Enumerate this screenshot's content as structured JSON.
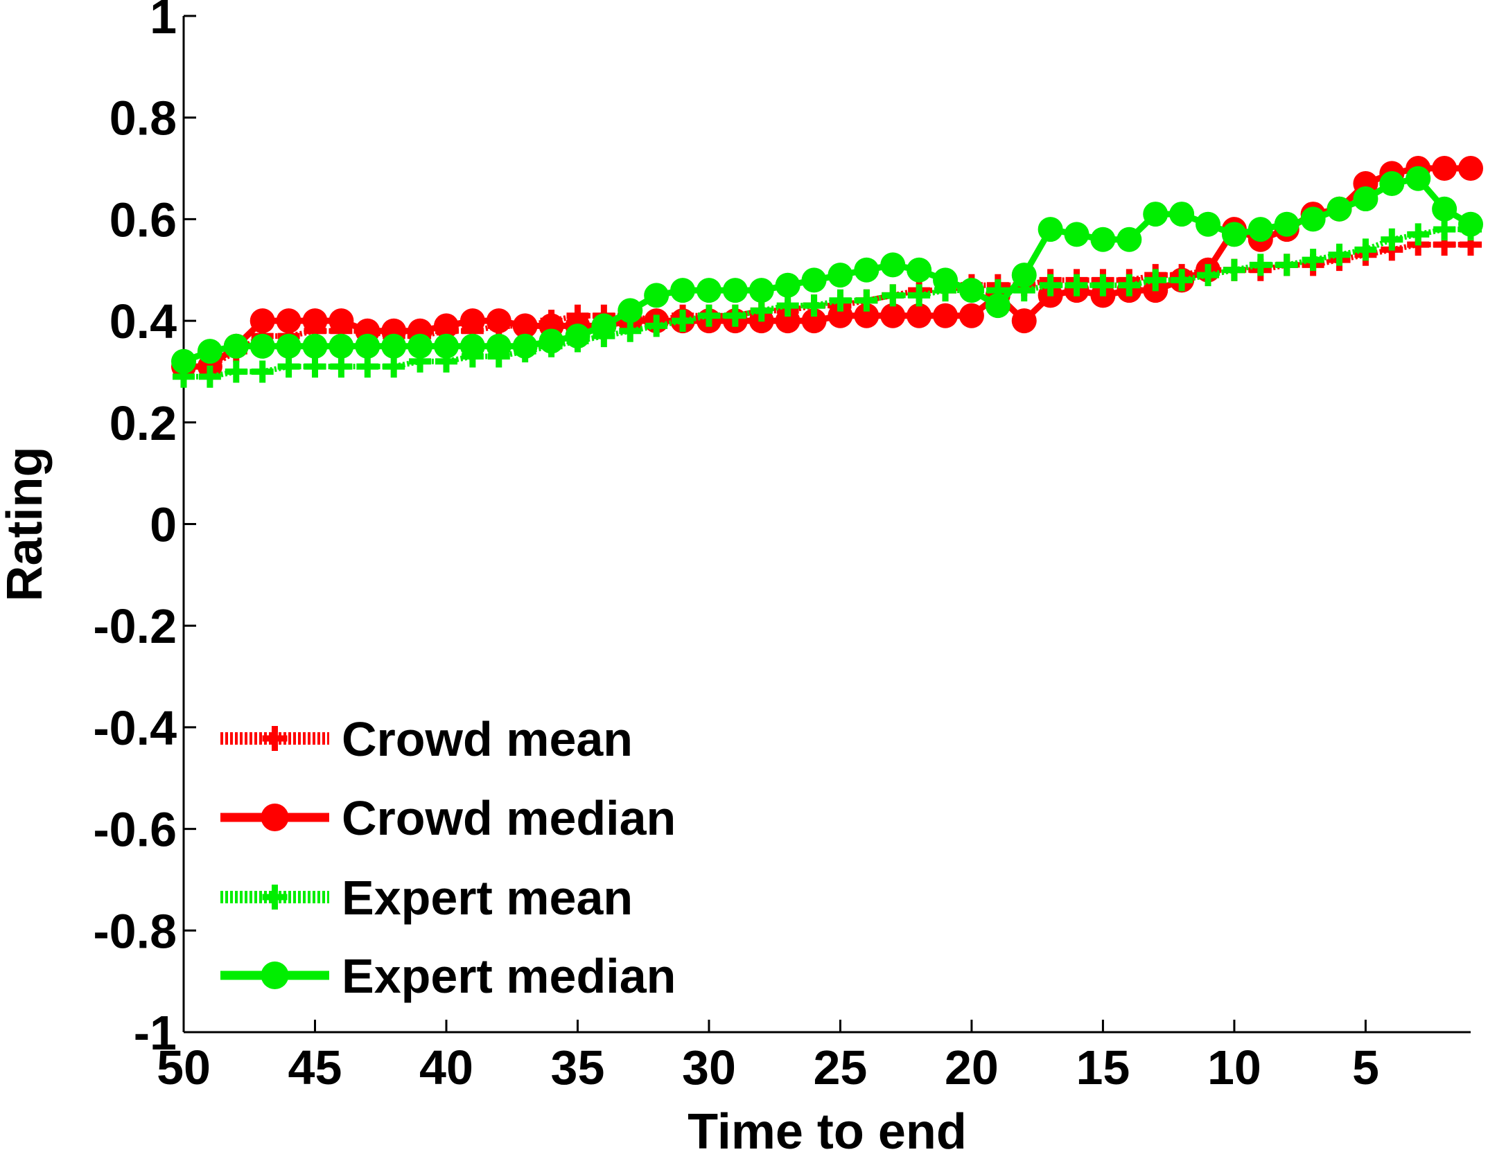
{
  "chart_data": {
    "type": "line",
    "title": "",
    "xlabel": "Time to end",
    "ylabel": "Rating",
    "xlim": [
      50,
      1
    ],
    "ylim": [
      -1,
      1
    ],
    "x_reversed": true,
    "xticks": [
      50,
      45,
      40,
      35,
      30,
      25,
      20,
      15,
      10,
      5
    ],
    "xtick_labels": [
      "50",
      "45",
      "40",
      "35",
      "30",
      "25",
      "20",
      "15",
      "10",
      "5"
    ],
    "yticks": [
      -1,
      -0.8,
      -0.6,
      -0.4,
      -0.2,
      0,
      0.2,
      0.4,
      0.6,
      0.8,
      1
    ],
    "ytick_labels": [
      "-1",
      "-0.8",
      "-0.6",
      "-0.4",
      "-0.2",
      "0",
      "0.2",
      "0.4",
      "0.6",
      "0.8",
      "1"
    ],
    "grid": false,
    "legend_position": "bottom-left",
    "x": [
      50,
      49,
      48,
      47,
      46,
      45,
      44,
      43,
      42,
      41,
      40,
      39,
      38,
      37,
      36,
      35,
      34,
      33,
      32,
      31,
      30,
      29,
      28,
      27,
      26,
      25,
      24,
      23,
      22,
      21,
      20,
      19,
      18,
      17,
      16,
      15,
      14,
      13,
      12,
      11,
      10,
      9,
      8,
      7,
      6,
      5,
      4,
      3,
      2,
      1
    ],
    "series": [
      {
        "name": "Crowd mean",
        "color": "#ff0000",
        "line_style": "dotted",
        "marker": "plus",
        "values": [
          0.31,
          0.31,
          0.34,
          0.37,
          0.37,
          0.38,
          0.38,
          0.38,
          0.37,
          0.37,
          0.38,
          0.38,
          0.39,
          0.39,
          0.4,
          0.41,
          0.41,
          0.41,
          0.4,
          0.41,
          0.41,
          0.41,
          0.42,
          0.42,
          0.43,
          0.43,
          0.44,
          0.45,
          0.46,
          0.46,
          0.47,
          0.47,
          0.47,
          0.48,
          0.48,
          0.48,
          0.48,
          0.49,
          0.49,
          0.5,
          0.5,
          0.5,
          0.51,
          0.51,
          0.52,
          0.53,
          0.54,
          0.55,
          0.55,
          0.55
        ]
      },
      {
        "name": "Crowd median",
        "color": "#ff0000",
        "line_style": "solid",
        "marker": "circle",
        "values": [
          0.31,
          0.31,
          0.35,
          0.4,
          0.4,
          0.4,
          0.4,
          0.38,
          0.38,
          0.38,
          0.39,
          0.4,
          0.4,
          0.39,
          0.39,
          0.39,
          0.39,
          0.4,
          0.4,
          0.4,
          0.4,
          0.4,
          0.4,
          0.4,
          0.4,
          0.41,
          0.41,
          0.41,
          0.41,
          0.41,
          0.41,
          0.45,
          0.4,
          0.45,
          0.46,
          0.45,
          0.46,
          0.46,
          0.48,
          0.5,
          0.58,
          0.56,
          0.58,
          0.61,
          0.62,
          0.67,
          0.69,
          0.7,
          0.7,
          0.7
        ]
      },
      {
        "name": "Expert mean",
        "color": "#00ee00",
        "line_style": "dotted",
        "marker": "plus",
        "values": [
          0.29,
          0.29,
          0.3,
          0.3,
          0.31,
          0.31,
          0.31,
          0.31,
          0.31,
          0.32,
          0.32,
          0.33,
          0.33,
          0.34,
          0.35,
          0.36,
          0.37,
          0.38,
          0.39,
          0.4,
          0.41,
          0.41,
          0.42,
          0.43,
          0.43,
          0.44,
          0.44,
          0.45,
          0.45,
          0.46,
          0.46,
          0.46,
          0.46,
          0.47,
          0.47,
          0.47,
          0.47,
          0.48,
          0.48,
          0.49,
          0.5,
          0.51,
          0.51,
          0.52,
          0.53,
          0.54,
          0.56,
          0.57,
          0.58,
          0.58
        ]
      },
      {
        "name": "Expert median",
        "color": "#00ee00",
        "line_style": "solid",
        "marker": "circle",
        "values": [
          0.32,
          0.34,
          0.35,
          0.35,
          0.35,
          0.35,
          0.35,
          0.35,
          0.35,
          0.35,
          0.35,
          0.35,
          0.35,
          0.35,
          0.36,
          0.37,
          0.39,
          0.42,
          0.45,
          0.46,
          0.46,
          0.46,
          0.46,
          0.47,
          0.48,
          0.49,
          0.5,
          0.51,
          0.5,
          0.48,
          0.46,
          0.43,
          0.49,
          0.58,
          0.57,
          0.56,
          0.56,
          0.61,
          0.61,
          0.59,
          0.57,
          0.58,
          0.59,
          0.6,
          0.62,
          0.64,
          0.67,
          0.68,
          0.62,
          0.59
        ]
      }
    ]
  }
}
